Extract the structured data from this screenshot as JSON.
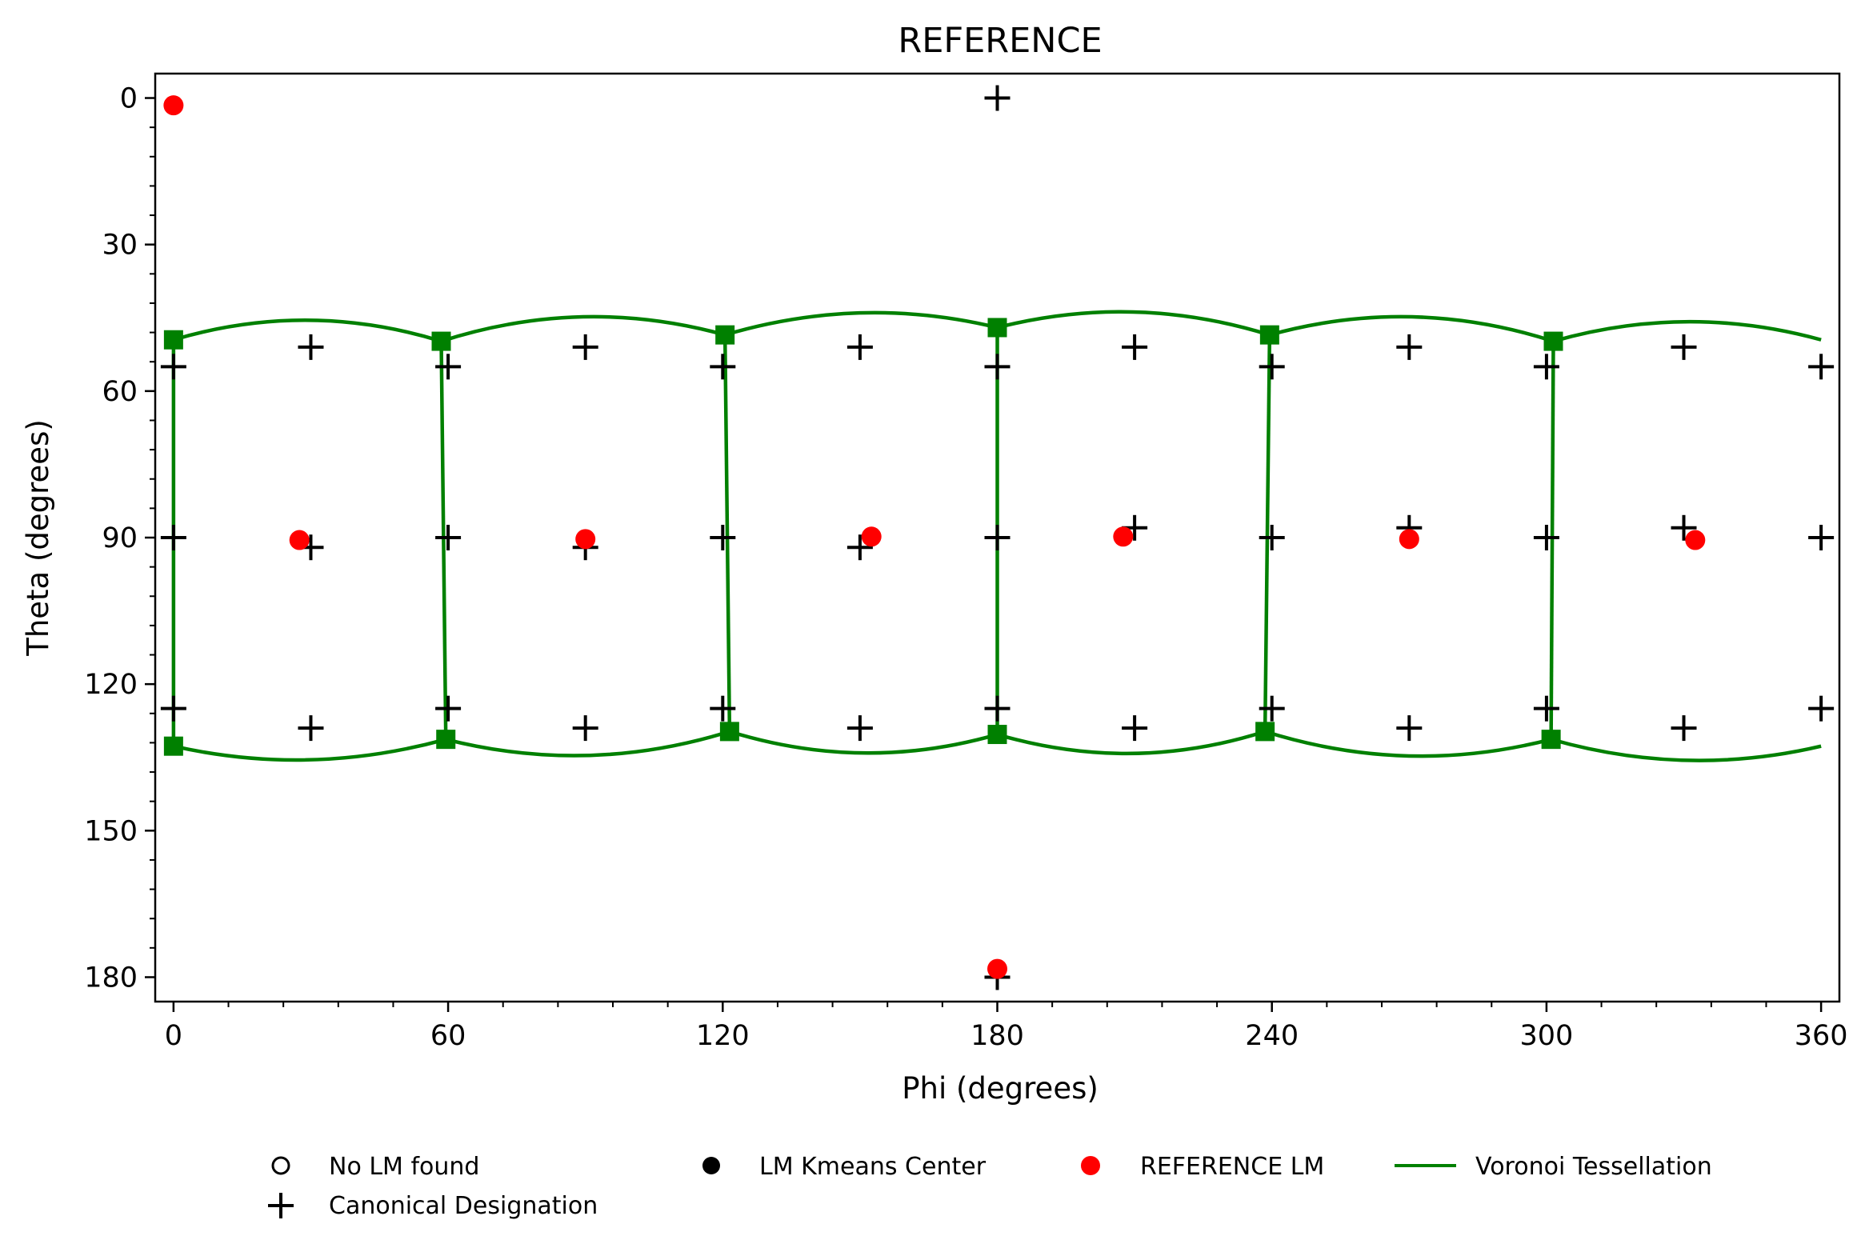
{
  "chart_data": {
    "type": "scatter",
    "title": "REFERENCE",
    "xlabel": "Phi (degrees)",
    "ylabel": "Theta (degrees)",
    "xlim": [
      -4,
      364
    ],
    "ylim": [
      185,
      -5
    ],
    "y_inverted": true,
    "xticks": [
      0,
      60,
      120,
      180,
      240,
      300,
      360
    ],
    "yticks": [
      0,
      30,
      60,
      90,
      120,
      150,
      180
    ],
    "grid": false,
    "legend": {
      "placement": "bottom",
      "entries": [
        {
          "name": "No LM found",
          "marker": "open-circle",
          "color": "#000000"
        },
        {
          "name": "LM Kmeans Center",
          "marker": "filled-circle",
          "color": "#000000"
        },
        {
          "name": "REFERENCE LM",
          "marker": "filled-circle",
          "color": "#ff0000"
        },
        {
          "name": "Voronoi Tessellation",
          "marker": "line",
          "color": "#008000"
        },
        {
          "name": "Canonical Designation",
          "marker": "plus",
          "color": "#000000"
        }
      ]
    },
    "series": [
      {
        "name": "Canonical Designation",
        "marker": "plus",
        "color": "#000000",
        "points": [
          [
            180,
            0
          ],
          [
            180,
            180
          ],
          [
            30,
            51
          ],
          [
            90,
            51
          ],
          [
            150,
            51
          ],
          [
            210,
            51
          ],
          [
            270,
            51
          ],
          [
            330,
            51
          ],
          [
            0,
            55
          ],
          [
            60,
            55
          ],
          [
            120,
            55
          ],
          [
            180,
            55
          ],
          [
            240,
            55
          ],
          [
            300,
            55
          ],
          [
            360,
            55
          ],
          [
            30,
            92
          ],
          [
            90,
            92
          ],
          [
            150,
            92
          ],
          [
            210,
            88
          ],
          [
            270,
            88
          ],
          [
            330,
            88
          ],
          [
            0,
            90
          ],
          [
            60,
            90
          ],
          [
            120,
            90
          ],
          [
            180,
            90
          ],
          [
            240,
            90
          ],
          [
            300,
            90
          ],
          [
            360,
            90
          ],
          [
            0,
            125
          ],
          [
            60,
            125
          ],
          [
            120,
            125
          ],
          [
            180,
            125
          ],
          [
            240,
            125
          ],
          [
            300,
            125
          ],
          [
            360,
            125
          ],
          [
            30,
            129
          ],
          [
            90,
            129
          ],
          [
            150,
            129
          ],
          [
            210,
            129
          ],
          [
            270,
            129
          ],
          [
            330,
            129
          ]
        ]
      },
      {
        "name": "REFERENCE LM",
        "marker": "filled-circle",
        "color": "#ff0000",
        "points": [
          [
            0,
            1.5
          ],
          [
            27.5,
            90.5
          ],
          [
            90,
            90.3
          ],
          [
            152.5,
            89.8
          ],
          [
            207.5,
            89.8
          ],
          [
            270,
            90.3
          ],
          [
            332.5,
            90.5
          ],
          [
            180,
            178.3
          ]
        ]
      },
      {
        "name": "Voronoi Tessellation",
        "marker": "line",
        "color": "#008000",
        "vertices_top": [
          [
            0,
            49.5
          ],
          [
            58.5,
            49.8
          ],
          [
            120.5,
            48.5
          ],
          [
            180,
            47
          ],
          [
            239.5,
            48.5
          ],
          [
            301.5,
            49.8
          ]
        ],
        "vertices_bottom": [
          [
            0,
            132.7
          ],
          [
            59.5,
            131.3
          ],
          [
            121.5,
            129.7
          ],
          [
            180,
            130.3
          ],
          [
            238.5,
            129.7
          ],
          [
            301,
            131.3
          ]
        ],
        "top_arc_peaks": [
          45.5,
          44.8,
          44.0,
          43.8,
          44.8,
          45.8
        ],
        "bottom_arc_troughs": [
          135.5,
          134.6,
          134.1,
          134.2,
          134.7,
          135.6
        ],
        "right_end": {
          "top": [
            360,
            49.5
          ],
          "bottom": [
            360,
            132.7
          ]
        }
      }
    ]
  }
}
